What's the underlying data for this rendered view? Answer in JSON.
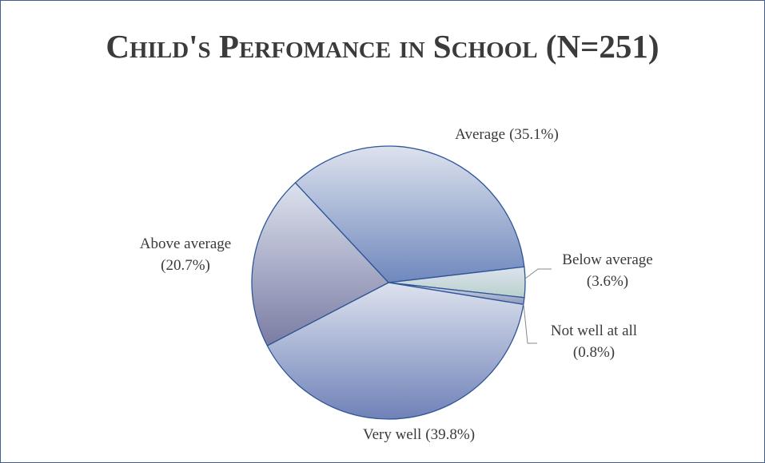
{
  "chart_data": {
    "type": "pie",
    "title": "Child's Perfomance in School (N=251)",
    "categories": [
      "Average",
      "Below average",
      "Not well at all",
      "Very well",
      "Above average"
    ],
    "values": [
      35.1,
      3.6,
      0.8,
      39.8,
      20.7
    ],
    "value_labels": [
      "(35.1%)",
      "(3.6%)",
      "(0.8%)",
      "(39.8%)",
      "(20.7%)"
    ],
    "colors": [
      "#6f88bd",
      "#b9d1cc",
      "#8c97bb",
      "#6f82b8",
      "#7a7ca3"
    ]
  }
}
